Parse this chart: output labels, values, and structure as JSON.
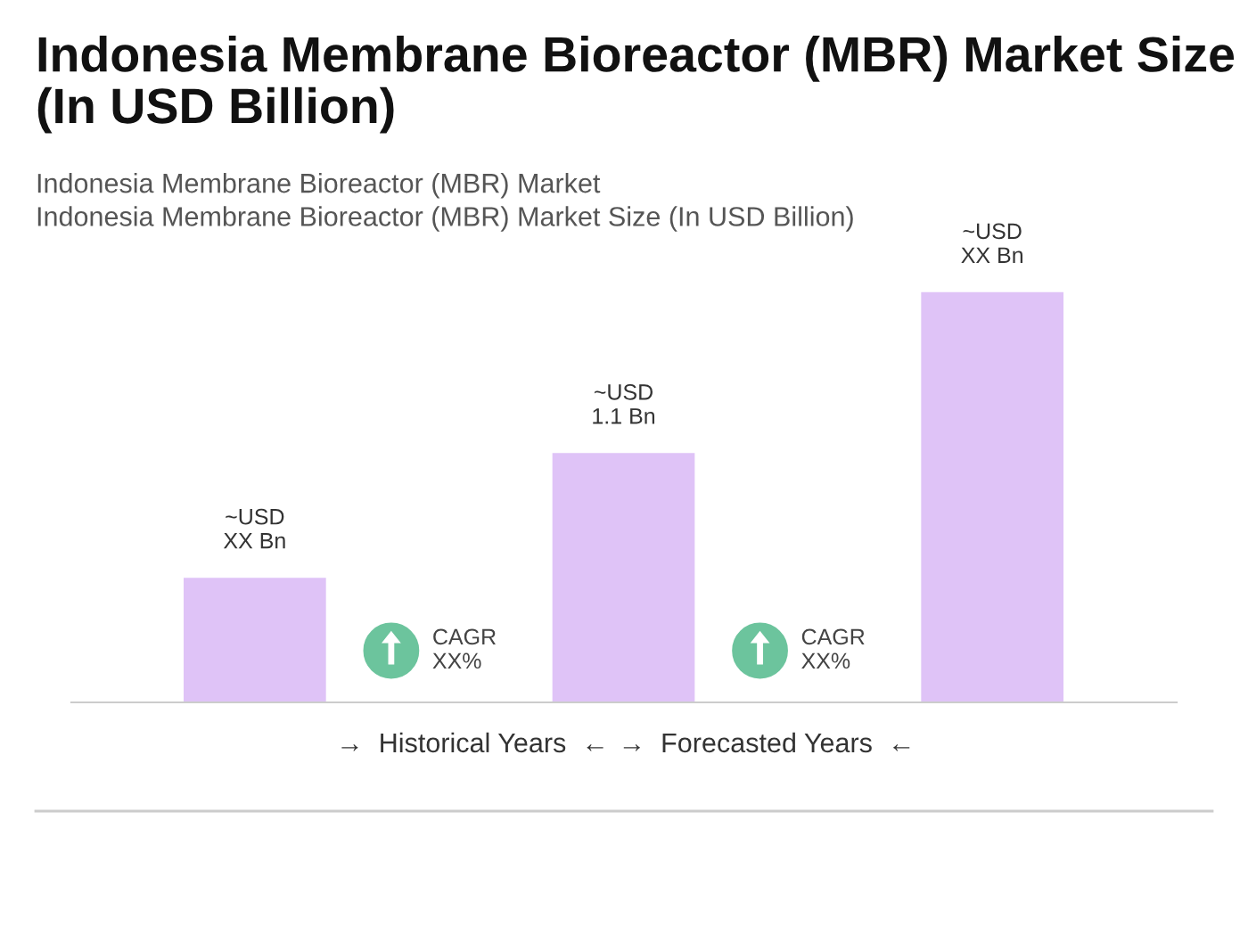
{
  "chart_data": {
    "type": "bar",
    "title": "Indonesia Membrane Bioreactor (MBR) Market Size\n(In USD Billion)",
    "subtitle": "Indonesia Membrane Bioreactor (MBR) Market\nIndonesia Membrane Bioreactor (MBR) Market Size (In USD Billion)",
    "categories": [
      null,
      null,
      null
    ],
    "values": [
      0.55,
      1.1,
      1.81
    ],
    "color": "#dfc3f7",
    "value_labels": [
      "~USD\nXX Bn",
      "~USD\n1.1 Bn",
      "~USD\nXX Bn"
    ],
    "annotations": [
      "CAGR\nXX%",
      "CAGR\nXX%",
      "→  Historical Years  ←",
      "→  Forecasted Years  ←"
    ],
    "legend": false,
    "grid": false
  }
}
